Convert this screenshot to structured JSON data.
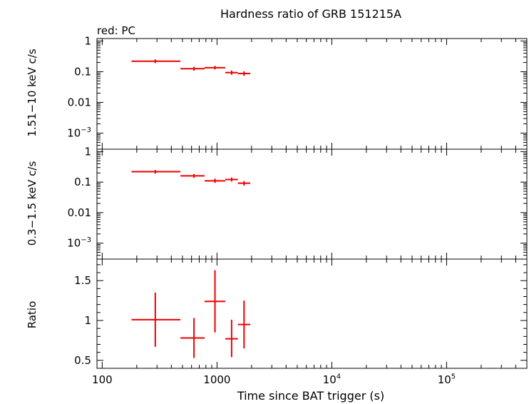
{
  "chart_data": {
    "type": "scatter",
    "title": "Hardness ratio of GRB 151215A",
    "legend": "red: PC",
    "xlabel": "Time since BAT trigger (s)",
    "xscale": "log",
    "xlim": [
      90,
      500000
    ],
    "x_tick_labels": [
      {
        "value": 100,
        "mant": "100",
        "exp": ""
      },
      {
        "value": 1000,
        "mant": "1000",
        "exp": ""
      },
      {
        "value": 10000,
        "mant": "10",
        "exp": "4"
      },
      {
        "value": 100000,
        "mant": "10",
        "exp": "5"
      }
    ],
    "panels": [
      {
        "id": "hard",
        "ylabel": "1.51−10 keV c/s",
        "yscale": "log",
        "ylim": [
          0.0003,
          1.2
        ],
        "y_tick_labels": [
          {
            "value": 1,
            "mant": "1",
            "exp": ""
          },
          {
            "value": 0.1,
            "mant": "0.1",
            "exp": ""
          },
          {
            "value": 0.01,
            "mant": "0.01",
            "exp": ""
          },
          {
            "value": 0.001,
            "mant": "10",
            "exp": "−3"
          }
        ],
        "series": [
          {
            "name": "PC",
            "color": "#ee0000",
            "points": [
              {
                "x": 290,
                "xlo": 180,
                "xhi": 480,
                "y": 0.22,
                "ylo": 0.19,
                "yhi": 0.25
              },
              {
                "x": 630,
                "xlo": 480,
                "xhi": 780,
                "y": 0.125,
                "ylo": 0.108,
                "yhi": 0.145
              },
              {
                "x": 960,
                "xlo": 780,
                "xhi": 1180,
                "y": 0.135,
                "ylo": 0.118,
                "yhi": 0.155
              },
              {
                "x": 1340,
                "xlo": 1180,
                "xhi": 1520,
                "y": 0.093,
                "ylo": 0.079,
                "yhi": 0.11
              },
              {
                "x": 1720,
                "xlo": 1520,
                "xhi": 1950,
                "y": 0.087,
                "ylo": 0.073,
                "yhi": 0.103
              }
            ]
          }
        ]
      },
      {
        "id": "soft",
        "ylabel": "0.3−1.5 keV c/s",
        "yscale": "log",
        "ylim": [
          0.0003,
          1.2
        ],
        "y_tick_labels": [
          {
            "value": 1,
            "mant": "1",
            "exp": ""
          },
          {
            "value": 0.1,
            "mant": "0.1",
            "exp": ""
          },
          {
            "value": 0.01,
            "mant": "0.01",
            "exp": ""
          },
          {
            "value": 0.001,
            "mant": "10",
            "exp": "−3"
          }
        ],
        "series": [
          {
            "name": "PC",
            "color": "#ee0000",
            "points": [
              {
                "x": 290,
                "xlo": 180,
                "xhi": 480,
                "y": 0.22,
                "ylo": 0.19,
                "yhi": 0.25
              },
              {
                "x": 630,
                "xlo": 480,
                "xhi": 780,
                "y": 0.16,
                "ylo": 0.138,
                "yhi": 0.185
              },
              {
                "x": 960,
                "xlo": 780,
                "xhi": 1180,
                "y": 0.11,
                "ylo": 0.094,
                "yhi": 0.13
              },
              {
                "x": 1340,
                "xlo": 1180,
                "xhi": 1520,
                "y": 0.122,
                "ylo": 0.104,
                "yhi": 0.142
              },
              {
                "x": 1720,
                "xlo": 1520,
                "xhi": 1950,
                "y": 0.092,
                "ylo": 0.077,
                "yhi": 0.108
              }
            ]
          }
        ]
      },
      {
        "id": "ratio",
        "ylabel": "Ratio",
        "yscale": "linear",
        "ylim": [
          0.4,
          1.77
        ],
        "y_tick_labels": [
          {
            "value": 0.5,
            "mant": "0.5",
            "exp": ""
          },
          {
            "value": 1,
            "mant": "1",
            "exp": ""
          },
          {
            "value": 1.5,
            "mant": "1.5",
            "exp": ""
          }
        ],
        "y_minor_step": 0.1,
        "series": [
          {
            "name": "PC",
            "color": "#ee0000",
            "points": [
              {
                "x": 290,
                "xlo": 180,
                "xhi": 480,
                "y": 1.01,
                "ylo": 0.67,
                "yhi": 1.35
              },
              {
                "x": 630,
                "xlo": 480,
                "xhi": 780,
                "y": 0.78,
                "ylo": 0.53,
                "yhi": 1.03
              },
              {
                "x": 960,
                "xlo": 780,
                "xhi": 1180,
                "y": 1.24,
                "ylo": 0.85,
                "yhi": 1.63
              },
              {
                "x": 1340,
                "xlo": 1180,
                "xhi": 1520,
                "y": 0.77,
                "ylo": 0.54,
                "yhi": 1.01
              },
              {
                "x": 1720,
                "xlo": 1520,
                "xhi": 1950,
                "y": 0.95,
                "ylo": 0.65,
                "yhi": 1.25
              }
            ]
          }
        ]
      }
    ]
  }
}
